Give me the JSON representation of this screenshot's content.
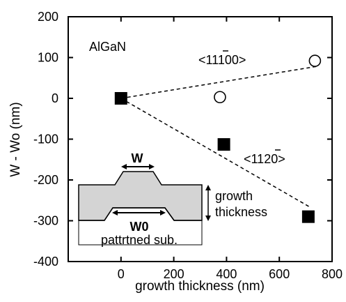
{
  "chart_data": {
    "type": "scatter",
    "xlabel": "growth thickness (nm)",
    "ylabel": "W - Wo (nm)",
    "xlim": [
      -200,
      800
    ],
    "ylim": [
      -400,
      200
    ],
    "x_ticks": [
      0,
      200,
      400,
      600,
      800
    ],
    "y_ticks": [
      200,
      100,
      0,
      -100,
      -200,
      -300,
      -400
    ],
    "grid": false,
    "series": [
      {
        "name": "<1-100>",
        "marker": "open-circle",
        "color": "#000000",
        "points": [
          [
            0,
            0
          ],
          [
            375,
            3
          ],
          [
            735,
            92
          ]
        ]
      },
      {
        "name": "<11-20>",
        "marker": "filled-square",
        "color": "#000000",
        "points": [
          [
            0,
            0
          ],
          [
            390,
            -113
          ],
          [
            710,
            -290
          ]
        ]
      }
    ],
    "fit_lines": [
      {
        "series": "<1-100>",
        "style": "dashed",
        "from": [
          0,
          0
        ],
        "to": [
          740,
          78
        ]
      },
      {
        "series": "<11-20>",
        "style": "dashed",
        "from": [
          0,
          0
        ],
        "to": [
          720,
          -268
        ]
      }
    ],
    "annotations": {
      "material": "AlGaN",
      "dir1_base": "<11",
      "dir1_bar": "1",
      "dir1_end": "00>",
      "dir2_base": "<11",
      "dir2_bar": "2",
      "dir2_end": "0>",
      "inset_w": "W",
      "inset_w0": "W0",
      "inset_sub": "pattrtned sub.",
      "inset_growth": "growth",
      "inset_thickness": "thickness"
    }
  }
}
